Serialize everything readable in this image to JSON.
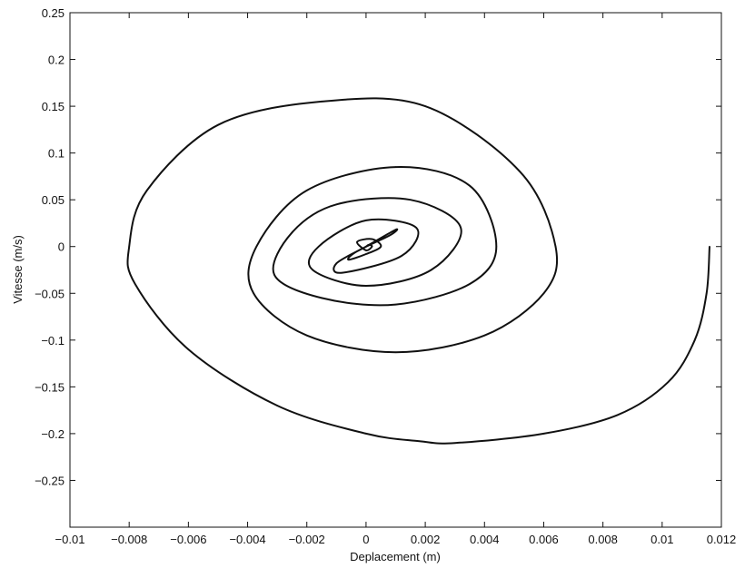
{
  "chart_data": {
    "type": "line",
    "title": "",
    "xlabel": "Deplacement (m)",
    "ylabel": "Vitesse (m/s)",
    "xlim": [
      -0.01,
      0.012
    ],
    "ylim": [
      -0.3,
      0.25
    ],
    "xticks": [
      -0.01,
      -0.008,
      -0.006,
      -0.004,
      -0.002,
      0,
      0.002,
      0.004,
      0.006,
      0.008,
      0.01,
      0.012
    ],
    "xtick_labels": [
      "−0.01",
      "−0.008",
      "−0.006",
      "−0.004",
      "−0.002",
      "0",
      "0.002",
      "0.004",
      "0.006",
      "0.008",
      "0.01",
      "0.012"
    ],
    "yticks": [
      -0.25,
      -0.2,
      -0.15,
      -0.1,
      -0.05,
      0,
      0.05,
      0.1,
      0.15,
      0.2,
      0.25
    ],
    "ytick_labels": [
      "−0.25",
      "−0.2",
      "−0.15",
      "−0.1",
      "−0.05",
      "0",
      "0.05",
      "0.1",
      "0.15",
      "0.2",
      "0.25"
    ],
    "grid": false,
    "legend": "none",
    "series": [
      {
        "color": "#111111",
        "x": [
          0.0116,
          0.0115,
          0.0111,
          0.0102,
          0.0085,
          0.006,
          0.003,
          0.0018,
          0.0,
          -0.003,
          -0.006,
          -0.0078,
          -0.008,
          -0.0074,
          -0.005,
          -0.0015,
          0.002,
          0.0052,
          0.0064,
          0.006,
          0.004,
          0.001,
          -0.002,
          -0.0038,
          -0.0037,
          -0.002,
          0.001,
          0.0035,
          0.0044,
          0.0035,
          0.001,
          -0.0015,
          -0.0031,
          -0.0025,
          -0.001,
          0.0015,
          0.0032,
          0.0022,
          0.0,
          -0.0018,
          -0.0016,
          0.0,
          0.0017,
          0.0012,
          -0.0008,
          -0.001,
          0.0,
          0.001,
          0.0008,
          -0.0003,
          -0.0006,
          0.0,
          0.0005,
          0.0002,
          -0.0003,
          0.0,
          0.0002,
          0.0001,
          0.0
        ],
        "y": [
          0.0,
          -0.05,
          -0.1,
          -0.145,
          -0.18,
          -0.2,
          -0.21,
          -0.208,
          -0.2,
          -0.17,
          -0.11,
          -0.04,
          0.0,
          0.06,
          0.13,
          0.155,
          0.15,
          0.08,
          0.0,
          -0.05,
          -0.095,
          -0.113,
          -0.095,
          -0.05,
          0.0,
          0.06,
          0.085,
          0.065,
          0.0,
          -0.04,
          -0.062,
          -0.055,
          -0.03,
          0.015,
          0.045,
          0.05,
          0.02,
          -0.025,
          -0.042,
          -0.025,
          0.0,
          0.028,
          0.02,
          -0.01,
          -0.028,
          -0.018,
          0.0,
          0.018,
          0.012,
          -0.005,
          -0.014,
          -0.008,
          0.0,
          0.008,
          0.005,
          -0.004,
          0.0,
          0.002,
          0.0
        ]
      }
    ]
  }
}
